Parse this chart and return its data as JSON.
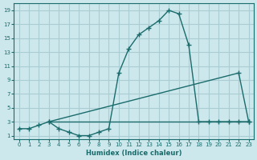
{
  "xlabel": "Humidex (Indice chaleur)",
  "background_color": "#cce8ec",
  "grid_color": "#aacdd4",
  "line_color": "#1a6b6b",
  "xlim": [
    -0.5,
    23.5
  ],
  "ylim": [
    0.5,
    20
  ],
  "xticks": [
    0,
    1,
    2,
    3,
    4,
    5,
    6,
    7,
    8,
    9,
    10,
    11,
    12,
    13,
    14,
    15,
    16,
    17,
    18,
    19,
    20,
    21,
    22,
    23
  ],
  "yticks": [
    1,
    3,
    5,
    7,
    9,
    11,
    13,
    15,
    17,
    19
  ],
  "curve1_x": [
    0,
    1,
    2,
    3,
    4,
    5,
    6,
    7,
    8,
    9,
    10,
    11,
    12,
    13,
    14,
    15,
    16,
    17,
    18,
    19,
    20,
    21,
    22,
    23
  ],
  "curve1_y": [
    2.0,
    2.0,
    2.5,
    3.0,
    2.0,
    1.5,
    1.0,
    1.0,
    1.5,
    2.0,
    10.0,
    13.5,
    15.5,
    16.5,
    17.5,
    19.0,
    18.5,
    14.0,
    3.0,
    3.0,
    3.0,
    3.0,
    3.0,
    3.0
  ],
  "curve2_x": [
    3,
    22,
    23
  ],
  "curve2_y": [
    3.0,
    10.0,
    3.0
  ],
  "curve3_x": [
    3,
    8,
    9,
    10,
    11,
    12,
    13,
    14,
    15,
    16,
    17,
    18,
    19,
    20,
    21,
    22,
    23
  ],
  "curve3_y": [
    3.0,
    3.0,
    3.0,
    3.0,
    3.0,
    3.0,
    3.0,
    3.0,
    3.0,
    3.0,
    3.0,
    3.0,
    3.0,
    3.0,
    3.0,
    3.0,
    3.0
  ]
}
